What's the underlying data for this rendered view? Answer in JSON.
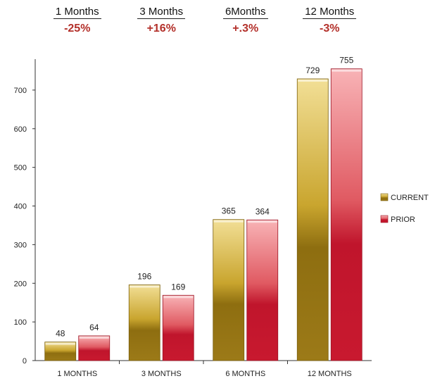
{
  "summary_headers": [
    {
      "label": "1 Months",
      "change": "-25%"
    },
    {
      "label": "3 Months",
      "change": "+16%"
    },
    {
      "label": "6Months",
      "change": "+.3%"
    },
    {
      "label": "12 Months",
      "change": "-3%"
    }
  ],
  "chart_data": {
    "type": "bar",
    "categories": [
      "1 MONTHS",
      "3 MONTHS",
      "6 MONTHS",
      "12 MONTHS"
    ],
    "series": [
      {
        "name": "CURRENT",
        "values": [
          48,
          196,
          365,
          729
        ],
        "color": "#a8861a"
      },
      {
        "name": "PRIOR",
        "values": [
          64,
          169,
          364,
          755
        ],
        "color": "#c0182c"
      }
    ],
    "y_ticks": [
      0,
      100,
      200,
      300,
      400,
      500,
      600,
      700
    ],
    "ylim": [
      0,
      780
    ],
    "legend_position": "right",
    "grid": false
  }
}
